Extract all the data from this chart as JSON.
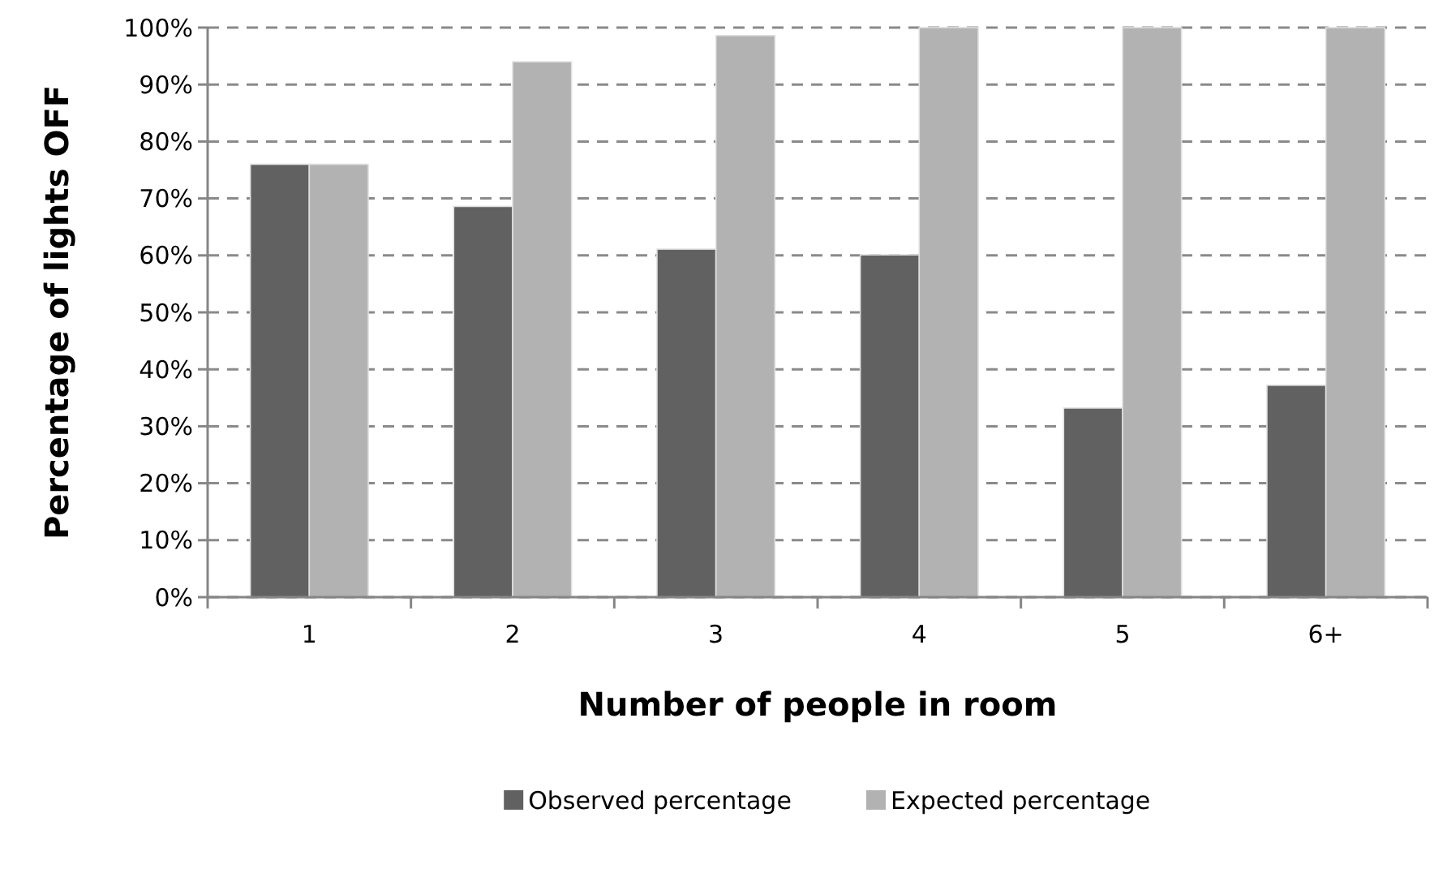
{
  "chart_data": {
    "type": "bar",
    "xlabel": "Number of people in room",
    "ylabel": "Percentage of lights OFF",
    "categories": [
      "1",
      "2",
      "3",
      "4",
      "5",
      "6+"
    ],
    "series": [
      {
        "name": "Observed percentage",
        "color": "#616161",
        "values": [
          76,
          68.6,
          61.1,
          60.1,
          33.2,
          37.2
        ]
      },
      {
        "name": "Expected percentage",
        "color": "#b2b2b2",
        "values": [
          76,
          94,
          98.6,
          100,
          100,
          100
        ]
      }
    ],
    "ylim": [
      0,
      100
    ],
    "yticks": [
      {
        "value": 0,
        "label": "0%"
      },
      {
        "value": 10,
        "label": "10%"
      },
      {
        "value": 20,
        "label": "20%"
      },
      {
        "value": 30,
        "label": "30%"
      },
      {
        "value": 40,
        "label": "40%"
      },
      {
        "value": 50,
        "label": "50%"
      },
      {
        "value": 60,
        "label": "60%"
      },
      {
        "value": 70,
        "label": "70%"
      },
      {
        "value": 80,
        "label": "80%"
      },
      {
        "value": 90,
        "label": "90%"
      },
      {
        "value": 100,
        "label": "100%"
      }
    ],
    "grid": "y",
    "legend": "bottom"
  }
}
